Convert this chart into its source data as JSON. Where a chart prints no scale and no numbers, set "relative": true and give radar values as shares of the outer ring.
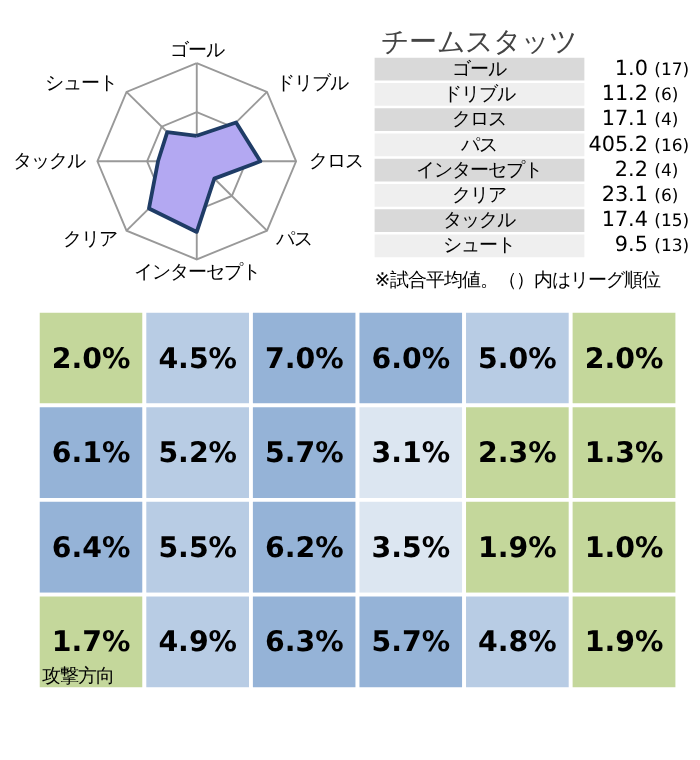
{
  "chart_data": [
    {
      "type": "radar",
      "relative": true,
      "grid": true,
      "categories": [
        "ゴール",
        "ドリブル",
        "クロス",
        "パス",
        "インターセプト",
        "クリア",
        "タックル",
        "シュート"
      ],
      "series": [
        {
          "color": "#b3a8f2",
          "values": [
            0.26,
            0.56,
            0.64,
            0.25,
            0.72,
            0.68,
            0.39,
            0.42
          ]
        }
      ]
    },
    {
      "type": "other",
      "title": "チームスタッツ",
      "categories": [
        "ゴール",
        "ドリブル",
        "クロス",
        "パス",
        "インターセプト",
        "クリア",
        "タックル",
        "シュート"
      ],
      "series": [
        {
          "values": [
            1.0,
            11.2,
            17.1,
            405.2,
            2.2,
            23.1,
            17.4,
            9.5
          ],
          "value_labels": [
            "1.0",
            "11.2",
            "17.1",
            "405.2",
            "2.2",
            "23.1",
            "17.4",
            "9.5"
          ]
        },
        {
          "values": [
            17,
            6,
            4,
            16,
            4,
            6,
            15,
            13
          ],
          "value_labels": [
            "(17)",
            "(6)",
            "(4)",
            "(16)",
            "(4)",
            "(6)",
            "(15)",
            "(13)"
          ]
        }
      ],
      "annotations": [
        "※試合平均値。（）内はリーグ順位"
      ]
    },
    {
      "type": "heatmap",
      "categories": [
        null,
        null,
        null,
        null,
        null,
        null
      ],
      "y_categories": [
        null,
        null,
        null,
        null
      ],
      "cells": [
        [
          2.0,
          4.5,
          7.0,
          6.0,
          5.0,
          2.0
        ],
        [
          6.1,
          5.2,
          5.7,
          3.1,
          2.3,
          1.3
        ],
        [
          6.4,
          5.5,
          6.2,
          3.5,
          1.9,
          1.0
        ],
        [
          1.7,
          4.9,
          6.3,
          5.7,
          4.8,
          1.9
        ]
      ],
      "cell_labels": [
        [
          "2.0%",
          "4.5%",
          "7.0%",
          "6.0%",
          "5.0%",
          "2.0%"
        ],
        [
          "6.1%",
          "5.2%",
          "5.7%",
          "3.1%",
          "2.3%",
          "1.3%"
        ],
        [
          "6.4%",
          "5.5%",
          "6.2%",
          "3.5%",
          "1.9%",
          "1.0%"
        ],
        [
          "1.7%",
          "4.9%",
          "6.3%",
          "5.7%",
          "4.8%",
          "1.9%"
        ]
      ],
      "colors": [
        "#c4d79b",
        "#dce6f1",
        "#b8cce4",
        "#95b3d7"
      ],
      "annotations": [
        "攻撃方向"
      ]
    }
  ]
}
